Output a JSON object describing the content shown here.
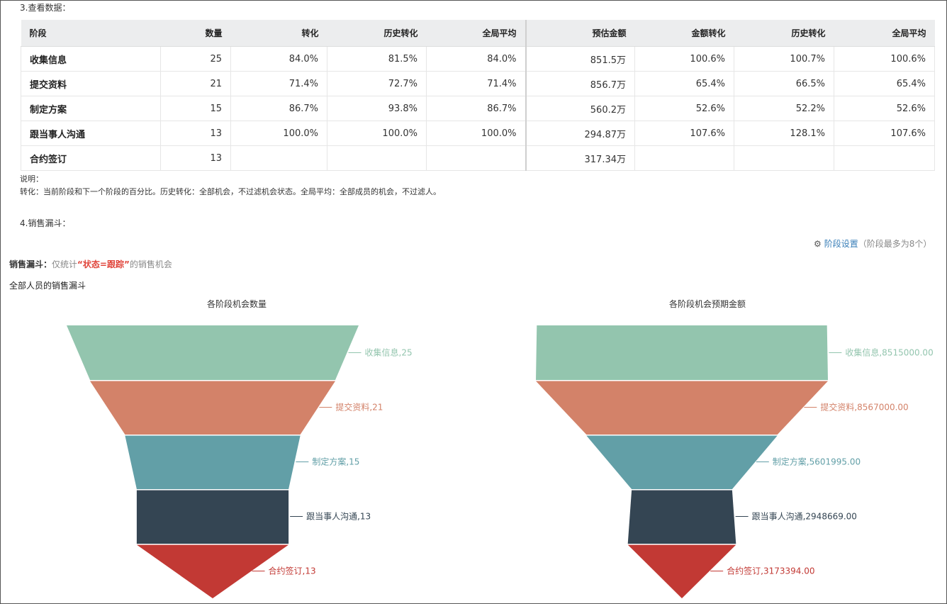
{
  "section3_title": "3.查看数据：",
  "table": {
    "headers": [
      "阶段",
      "数量",
      "转化",
      "历史转化",
      "全局平均",
      "预估金额",
      "金额转化",
      "历史转化",
      "全局平均"
    ],
    "rows": [
      [
        "收集信息",
        "25",
        "84.0%",
        "81.5%",
        "84.0%",
        "851.5万",
        "100.6%",
        "100.7%",
        "100.6%"
      ],
      [
        "提交资料",
        "21",
        "71.4%",
        "72.7%",
        "71.4%",
        "856.7万",
        "65.4%",
        "66.5%",
        "65.4%"
      ],
      [
        "制定方案",
        "15",
        "86.7%",
        "93.8%",
        "86.7%",
        "560.2万",
        "52.6%",
        "52.2%",
        "52.6%"
      ],
      [
        "跟当事人沟通",
        "13",
        "100.0%",
        "100.0%",
        "100.0%",
        "294.87万",
        "107.6%",
        "128.1%",
        "107.6%"
      ],
      [
        "合约签订",
        "13",
        "",
        "",
        "",
        "317.34万",
        "",
        "",
        ""
      ]
    ]
  },
  "note": {
    "title": "说明：",
    "text": "转化：当前阶段和下一个阶段的百分比。历史转化：全部机会，不过滤机会状态。全局平均：全部成员的机会，不过滤人。"
  },
  "section4_title": "4.销售漏斗：",
  "settings": {
    "gear_icon": "gear-icon",
    "link_label": "阶段设置",
    "hint": "（阶段最多为8个）"
  },
  "funnel_desc": {
    "label": "销售漏斗：",
    "prefix": "仅统计",
    "highlight": "“状态=跟踪”",
    "suffix": "的销售机会"
  },
  "subhead": "全部人员的销售漏斗",
  "colors": [
    "#93c5ae",
    "#d38269",
    "#629fa7",
    "#344553",
    "#c23934"
  ],
  "chart_data": [
    {
      "type": "funnel",
      "title": "各阶段机会数量",
      "categories": [
        "收集信息",
        "提交资料",
        "制定方案",
        "跟当事人沟通",
        "合约签订"
      ],
      "values": [
        25,
        21,
        15,
        13,
        13
      ],
      "labels": [
        "收集信息,25",
        "提交资料,21",
        "制定方案,15",
        "跟当事人沟通,13",
        "合约签订,13"
      ]
    },
    {
      "type": "funnel",
      "title": "各阶段机会预期金额",
      "categories": [
        "收集信息",
        "提交资料",
        "制定方案",
        "跟当事人沟通",
        "合约签订"
      ],
      "values": [
        8515000.0,
        8567000.0,
        5601995.0,
        2948669.0,
        3173394.0
      ],
      "labels": [
        "收集信息,8515000.00",
        "提交资料,8567000.00",
        "制定方案,5601995.00",
        "跟当事人沟通,2948669.00",
        "合约签订,3173394.00"
      ]
    }
  ]
}
